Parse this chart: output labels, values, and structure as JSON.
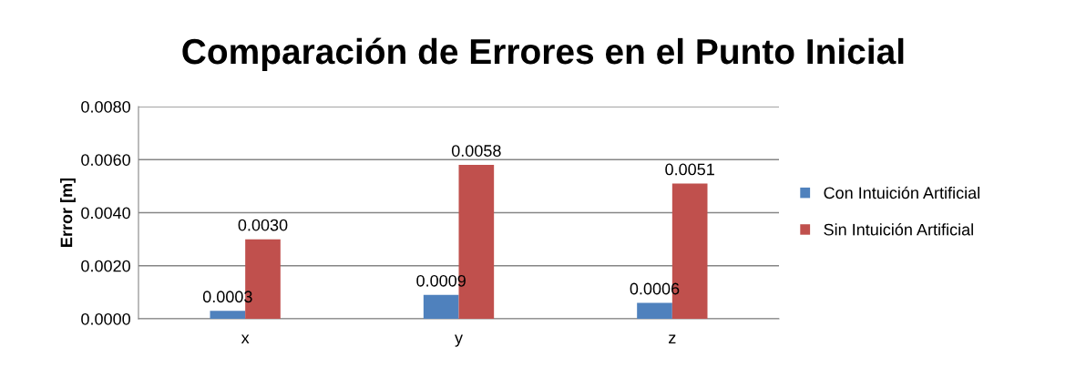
{
  "chart_data": {
    "type": "bar",
    "title": "Comparación de Errores en el Punto Inicial",
    "ylabel": "Error [m]",
    "categories": [
      "x",
      "y",
      "z"
    ],
    "series": [
      {
        "name": "Con Intuición Artificial",
        "color": "#4f81bd",
        "values": [
          0.0003,
          0.0009,
          0.0006
        ],
        "value_labels": [
          "0.0003",
          "0.0009",
          "0.0006"
        ]
      },
      {
        "name": "Sin Intuición Artificial",
        "color": "#c0504d",
        "values": [
          0.003,
          0.0058,
          0.0051
        ],
        "value_labels": [
          "0.0030",
          "0.0058",
          "0.0051"
        ]
      }
    ],
    "ylim": [
      0,
      0.008
    ],
    "yticks": [
      {
        "value": 0,
        "label": "0.0000"
      },
      {
        "value": 0.002,
        "label": "0.0020"
      },
      {
        "value": 0.004,
        "label": "0.0040"
      },
      {
        "value": 0.006,
        "label": "0.0060"
      },
      {
        "value": 0.008,
        "label": "0.0080"
      }
    ],
    "grid": "y",
    "legend": "right"
  }
}
